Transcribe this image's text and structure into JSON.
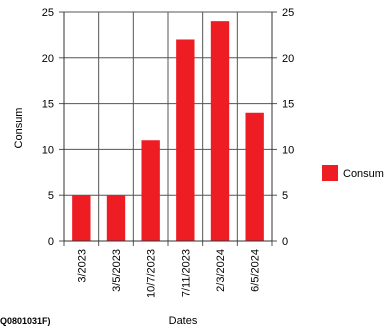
{
  "chart_data": {
    "type": "bar",
    "categories": [
      "3/2023",
      "3/5/2023",
      "10/7/2023",
      "7/11/2023",
      "2/3/2024",
      "6/5/2024"
    ],
    "series": [
      {
        "name": "Consum",
        "values": [
          5,
          5,
          11,
          22,
          24,
          14
        ],
        "color": "#ee1d24"
      }
    ],
    "xlabel": "Dates",
    "ylabel": "Consum",
    "ylim": [
      0,
      25
    ],
    "yticks": [
      0,
      5,
      10,
      15,
      20,
      25
    ],
    "secondary_axis": true,
    "grid": true,
    "legend": {
      "position": "right",
      "entries": [
        "Consum"
      ]
    }
  },
  "footer_note": "Q0801031F)"
}
